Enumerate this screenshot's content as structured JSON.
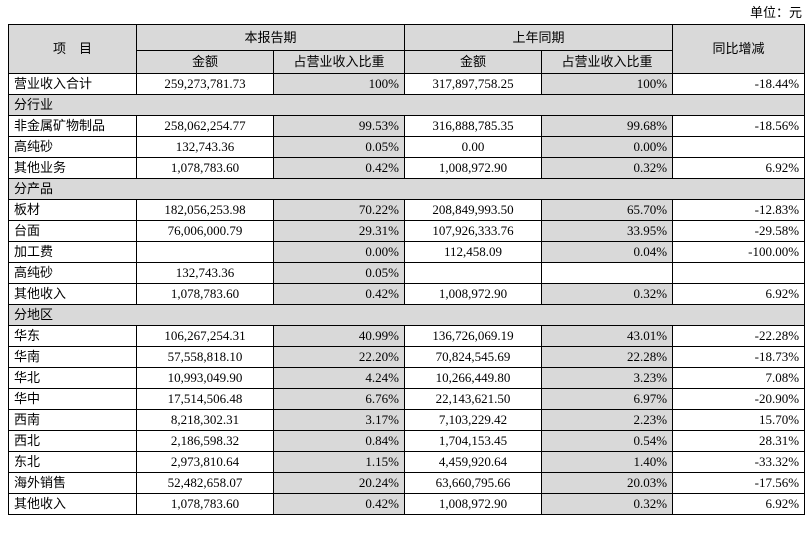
{
  "unit_label": "单位：元",
  "table": {
    "header": {
      "item": "项　目",
      "current_period": "本报告期",
      "prior_period": "上年同期",
      "amount": "金额",
      "pct_of_revenue": "占营业收入比重",
      "yoy_change": "同比增减"
    },
    "rows": [
      {
        "type": "data",
        "name": "营业收入合计",
        "cur_amount": "259,273,781.73",
        "cur_pct": "100%",
        "prior_amount": "317,897,758.25",
        "prior_pct": "100%",
        "yoy": "-18.44%"
      },
      {
        "type": "section",
        "name": "分行业"
      },
      {
        "type": "data",
        "name": "非金属矿物制品",
        "cur_amount": "258,062,254.77",
        "cur_pct": "99.53%",
        "prior_amount": "316,888,785.35",
        "prior_pct": "99.68%",
        "yoy": "-18.56%"
      },
      {
        "type": "data",
        "name": "高纯砂",
        "cur_amount": "132,743.36",
        "cur_pct": "0.05%",
        "prior_amount": "0.00",
        "prior_pct": "0.00%",
        "yoy": ""
      },
      {
        "type": "data",
        "name": "其他业务",
        "cur_amount": "1,078,783.60",
        "cur_pct": "0.42%",
        "prior_amount": "1,008,972.90",
        "prior_pct": "0.32%",
        "yoy": "6.92%"
      },
      {
        "type": "section",
        "name": "分产品"
      },
      {
        "type": "data",
        "name": "板材",
        "cur_amount": "182,056,253.98",
        "cur_pct": "70.22%",
        "prior_amount": "208,849,993.50",
        "prior_pct": "65.70%",
        "yoy": "-12.83%"
      },
      {
        "type": "data",
        "name": "台面",
        "cur_amount": "76,006,000.79",
        "cur_pct": "29.31%",
        "prior_amount": "107,926,333.76",
        "prior_pct": "33.95%",
        "yoy": "-29.58%"
      },
      {
        "type": "data",
        "name": "加工费",
        "cur_amount": "",
        "cur_pct": "0.00%",
        "prior_amount": "112,458.09",
        "prior_pct": "0.04%",
        "yoy": "-100.00%"
      },
      {
        "type": "data",
        "name": "高纯砂",
        "cur_amount": "132,743.36",
        "cur_pct": "0.05%",
        "prior_amount": "",
        "prior_pct": "",
        "yoy": ""
      },
      {
        "type": "data",
        "name": "其他收入",
        "cur_amount": "1,078,783.60",
        "cur_pct": "0.42%",
        "prior_amount": "1,008,972.90",
        "prior_pct": "0.32%",
        "yoy": "6.92%"
      },
      {
        "type": "section",
        "name": "分地区"
      },
      {
        "type": "data",
        "name": "华东",
        "cur_amount": "106,267,254.31",
        "cur_pct": "40.99%",
        "prior_amount": "136,726,069.19",
        "prior_pct": "43.01%",
        "yoy": "-22.28%"
      },
      {
        "type": "data",
        "name": "华南",
        "cur_amount": "57,558,818.10",
        "cur_pct": "22.20%",
        "prior_amount": "70,824,545.69",
        "prior_pct": "22.28%",
        "yoy": "-18.73%"
      },
      {
        "type": "data",
        "name": "华北",
        "cur_amount": "10,993,049.90",
        "cur_pct": "4.24%",
        "prior_amount": "10,266,449.80",
        "prior_pct": "3.23%",
        "yoy": "7.08%"
      },
      {
        "type": "data",
        "name": "华中",
        "cur_amount": "17,514,506.48",
        "cur_pct": "6.76%",
        "prior_amount": "22,143,621.50",
        "prior_pct": "6.97%",
        "yoy": "-20.90%"
      },
      {
        "type": "data",
        "name": "西南",
        "cur_amount": "8,218,302.31",
        "cur_pct": "3.17%",
        "prior_amount": "7,103,229.42",
        "prior_pct": "2.23%",
        "yoy": "15.70%"
      },
      {
        "type": "data",
        "name": "西北",
        "cur_amount": "2,186,598.32",
        "cur_pct": "0.84%",
        "prior_amount": "1,704,153.45",
        "prior_pct": "0.54%",
        "yoy": "28.31%"
      },
      {
        "type": "data",
        "name": "东北",
        "cur_amount": "2,973,810.64",
        "cur_pct": "1.15%",
        "prior_amount": "4,459,920.64",
        "prior_pct": "1.40%",
        "yoy": "-33.32%"
      },
      {
        "type": "data",
        "name": "海外销售",
        "cur_amount": "52,482,658.07",
        "cur_pct": "20.24%",
        "prior_amount": "63,660,795.66",
        "prior_pct": "20.03%",
        "yoy": "-17.56%"
      },
      {
        "type": "data",
        "name": "其他收入",
        "cur_amount": "1,078,783.60",
        "cur_pct": "0.42%",
        "prior_amount": "1,008,972.90",
        "prior_pct": "0.32%",
        "yoy": "6.92%"
      }
    ]
  }
}
